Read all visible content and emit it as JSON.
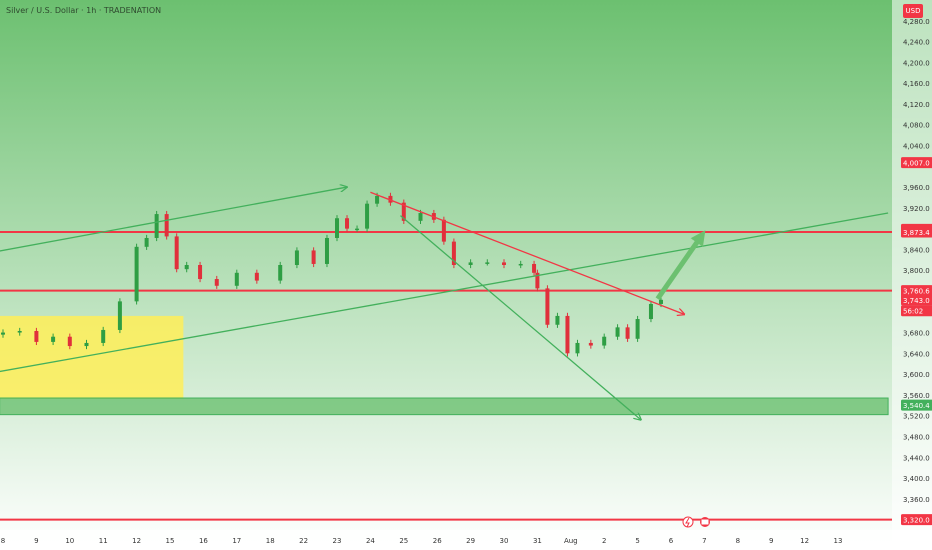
{
  "header": {
    "title": "Silver / U.S. Dollar · 1h · TRADENATION",
    "currency": "USD"
  },
  "colors": {
    "bg_top": "#6cc070",
    "bg_bottom": "#ffffff",
    "up": "#2e9e44",
    "down": "#e0303b",
    "red_line": "#f23645",
    "green_line": "#43b05c",
    "yellow_zone": "#ffee58",
    "green_zone": "#6cc070"
  },
  "chart_data": {
    "type": "candlestick",
    "title": "Silver / U.S. Dollar · 1h · TRADENATION",
    "y_axis": {
      "range": [
        3300,
        4320
      ],
      "ticks": [
        "4,280.0",
        "4,240.0",
        "4,200.0",
        "4,160.0",
        "4,120.0",
        "4,080.0",
        "4,040.0",
        "3,960.0",
        "3,920.0",
        "3,840.0",
        "3,800.0",
        "3,680.0",
        "3,640.0",
        "3,600.0",
        "3,560.0",
        "3,520.0",
        "3,480.0",
        "3,440.0",
        "3,400.0",
        "3,360.0"
      ],
      "tick_values": [
        4280,
        4240,
        4200,
        4160,
        4120,
        4080,
        4040,
        3960,
        3920,
        3840,
        3800,
        3680,
        3640,
        3600,
        3560,
        3520,
        3480,
        3440,
        3400,
        3360
      ]
    },
    "x_axis": {
      "ticks": [
        "8",
        "9",
        "10",
        "11",
        "12",
        "15",
        "16",
        "17",
        "18",
        "22",
        "23",
        "24",
        "25",
        "26",
        "29",
        "30",
        "31",
        "Aug",
        "2",
        "5",
        "6",
        "7",
        "8",
        "9",
        "12",
        "13"
      ],
      "tick_positions": [
        0,
        1,
        2,
        3,
        4,
        5,
        6,
        7,
        8,
        9,
        10,
        11,
        12,
        13,
        14,
        15,
        16,
        17,
        18,
        19,
        20,
        21,
        22,
        23,
        24,
        25
      ]
    },
    "price_labels": [
      {
        "text": "4,007.0",
        "value": 4007,
        "color": "#f23645"
      },
      {
        "text": "3,878.6",
        "value": 3878.6,
        "color": "#f23645"
      },
      {
        "text": "3,873.4",
        "value": 3873.4,
        "color": "#f23645"
      },
      {
        "text": "3,760.6",
        "value": 3760.6,
        "color": "#f23645"
      },
      {
        "text": "3,743.0",
        "value": 3743,
        "color": "#f23645"
      },
      {
        "text": "56:02",
        "value": 3722,
        "color": "#f23645"
      },
      {
        "text": "3,540.4",
        "value": 3540.4,
        "color": "#43b05c"
      },
      {
        "text": "3,320.0",
        "value": 3320,
        "color": "#f23645"
      }
    ],
    "horizontal_levels": [
      {
        "value": 3873.4,
        "color": "#f23645"
      },
      {
        "value": 3760.6,
        "color": "#f23645"
      },
      {
        "value": 3320.0,
        "color": "#f23645"
      }
    ],
    "zones": [
      {
        "name": "demand",
        "color": "#ffee58",
        "x_range": [
          -0.1,
          5.4
        ],
        "y_range": [
          3552,
          3712
        ]
      },
      {
        "name": "support",
        "color": "#6cc070",
        "x_range": [
          -0.1,
          26.5
        ],
        "y_range": [
          3522,
          3554
        ]
      }
    ],
    "trendlines": [
      {
        "color": "#43b05c",
        "from": [
          -0.1,
          3837
        ],
        "to": [
          10.3,
          3960
        ],
        "arrow": true
      },
      {
        "color": "#43b05c",
        "from": [
          -0.1,
          3605
        ],
        "to": [
          26.5,
          3910
        ],
        "arrow": false
      },
      {
        "color": "#43b05c",
        "from": [
          11.9,
          3905
        ],
        "to": [
          19.1,
          3512
        ],
        "arrow": true
      },
      {
        "color": "#f23645",
        "from": [
          11.0,
          3950
        ],
        "to": [
          20.4,
          3715
        ],
        "arrow": true
      },
      {
        "color": "#6cc070",
        "from": [
          19.6,
          3745
        ],
        "to": [
          20.9,
          3865
        ],
        "arrow": true,
        "thick": true
      }
    ],
    "series": [
      {
        "x": 0,
        "close": 3680
      },
      {
        "x": 0.5,
        "close": 3683
      },
      {
        "x": 1,
        "close": 3662
      },
      {
        "x": 1.5,
        "close": 3672
      },
      {
        "x": 2,
        "close": 3654
      },
      {
        "x": 2.5,
        "close": 3660
      },
      {
        "x": 3,
        "close": 3685
      },
      {
        "x": 3.5,
        "close": 3740
      },
      {
        "x": 4,
        "close": 3845
      },
      {
        "x": 4.3,
        "close": 3862
      },
      {
        "x": 4.6,
        "close": 3908
      },
      {
        "x": 4.9,
        "close": 3865
      },
      {
        "x": 5.2,
        "close": 3802
      },
      {
        "x": 5.5,
        "close": 3810
      },
      {
        "x": 5.9,
        "close": 3783
      },
      {
        "x": 6.4,
        "close": 3770
      },
      {
        "x": 7,
        "close": 3795
      },
      {
        "x": 7.6,
        "close": 3780
      },
      {
        "x": 8.3,
        "close": 3810
      },
      {
        "x": 8.8,
        "close": 3838
      },
      {
        "x": 9.3,
        "close": 3812
      },
      {
        "x": 9.7,
        "close": 3862
      },
      {
        "x": 10,
        "close": 3900
      },
      {
        "x": 10.3,
        "close": 3880
      },
      {
        "x": 10.6,
        "close": 3880
      },
      {
        "x": 10.9,
        "close": 3928
      },
      {
        "x": 11.2,
        "close": 3943
      },
      {
        "x": 11.6,
        "close": 3930
      },
      {
        "x": 12,
        "close": 3895
      },
      {
        "x": 12.5,
        "close": 3910
      },
      {
        "x": 12.9,
        "close": 3897
      },
      {
        "x": 13.2,
        "close": 3855
      },
      {
        "x": 13.5,
        "close": 3810
      },
      {
        "x": 14,
        "close": 3815
      },
      {
        "x": 14.5,
        "close": 3815
      },
      {
        "x": 15,
        "close": 3810
      },
      {
        "x": 15.5,
        "close": 3812
      },
      {
        "x": 15.9,
        "close": 3795
      },
      {
        "x": 16,
        "close": 3765
      },
      {
        "x": 16.3,
        "close": 3695
      },
      {
        "x": 16.6,
        "close": 3712
      },
      {
        "x": 16.9,
        "close": 3640
      },
      {
        "x": 17.2,
        "close": 3660
      },
      {
        "x": 17.6,
        "close": 3655
      },
      {
        "x": 18,
        "close": 3672
      },
      {
        "x": 18.4,
        "close": 3690
      },
      {
        "x": 18.7,
        "close": 3668
      },
      {
        "x": 19,
        "close": 3706
      },
      {
        "x": 19.4,
        "close": 3735
      },
      {
        "x": 19.7,
        "close": 3743
      }
    ]
  }
}
